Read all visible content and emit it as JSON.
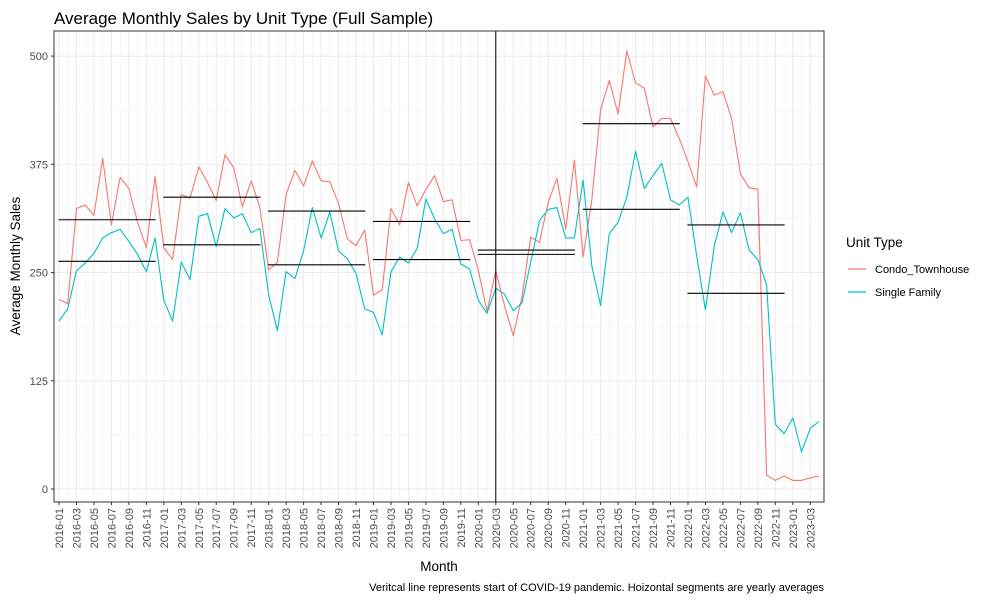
{
  "chart_data": {
    "type": "line",
    "title": "Average Monthly Sales by Unit Type (Full Sample)",
    "xlabel": "Month",
    "ylabel": "Average Monthly Sales",
    "caption": "Veritcal line represents start of COVID-19 pandemic. Hoizontal segments are yearly averages",
    "ylim": [
      -15,
      529
    ],
    "y_ticks": [
      0,
      125,
      250,
      375,
      500
    ],
    "grid": true,
    "legend": {
      "title": "Unit Type",
      "placement": "right"
    },
    "x": [
      "2016-01",
      "2016-02",
      "2016-03",
      "2016-04",
      "2016-05",
      "2016-06",
      "2016-07",
      "2016-08",
      "2016-09",
      "2016-10",
      "2016-11",
      "2016-12",
      "2017-01",
      "2017-02",
      "2017-03",
      "2017-04",
      "2017-05",
      "2017-06",
      "2017-07",
      "2017-08",
      "2017-09",
      "2017-10",
      "2017-11",
      "2017-12",
      "2018-01",
      "2018-02",
      "2018-03",
      "2018-04",
      "2018-05",
      "2018-06",
      "2018-07",
      "2018-08",
      "2018-09",
      "2018-10",
      "2018-11",
      "2018-12",
      "2019-01",
      "2019-02",
      "2019-03",
      "2019-04",
      "2019-05",
      "2019-06",
      "2019-07",
      "2019-08",
      "2019-09",
      "2019-10",
      "2019-11",
      "2019-12",
      "2020-01",
      "2020-02",
      "2020-03",
      "2020-04",
      "2020-05",
      "2020-06",
      "2020-07",
      "2020-08",
      "2020-09",
      "2020-10",
      "2020-11",
      "2020-12",
      "2021-01",
      "2021-02",
      "2021-03",
      "2021-04",
      "2021-05",
      "2021-06",
      "2021-07",
      "2021-08",
      "2021-09",
      "2021-10",
      "2021-11",
      "2021-12",
      "2022-01",
      "2022-02",
      "2022-03",
      "2022-04",
      "2022-05",
      "2022-06",
      "2022-07",
      "2022-08",
      "2022-09",
      "2022-10",
      "2022-11",
      "2022-12",
      "2023-01",
      "2023-02",
      "2023-03",
      "2023-04"
    ],
    "x_tick_labels": [
      "2016-01",
      "2016-03",
      "2016-05",
      "2016-07",
      "2016-09",
      "2016-11",
      "2017-01",
      "2017-03",
      "2017-05",
      "2017-07",
      "2017-09",
      "2017-11",
      "2018-01",
      "2018-03",
      "2018-05",
      "2018-07",
      "2018-09",
      "2018-11",
      "2019-01",
      "2019-03",
      "2019-05",
      "2019-07",
      "2019-09",
      "2019-11",
      "2020-01",
      "2020-03",
      "2020-05",
      "2020-07",
      "2020-09",
      "2020-11",
      "2021-01",
      "2021-03",
      "2021-05",
      "2021-07",
      "2021-09",
      "2021-11",
      "2022-01",
      "2022-03",
      "2022-05",
      "2022-07",
      "2022-09",
      "2022-11",
      "2023-01",
      "2023-03"
    ],
    "vline": "2020-03",
    "series": [
      {
        "name": "Condo_Townhouse",
        "color": "#F8766D",
        "values": [
          219,
          214,
          324,
          328,
          316,
          382,
          305,
          360,
          347,
          308,
          279,
          361,
          279,
          265,
          340,
          336,
          372,
          354,
          333,
          386,
          371,
          326,
          356,
          325,
          253,
          262,
          340,
          368,
          350,
          379,
          356,
          355,
          330,
          289,
          281,
          299,
          224,
          230,
          324,
          305,
          354,
          327,
          346,
          362,
          332,
          334,
          287,
          288,
          253,
          205,
          252,
          212,
          177,
          222,
          291,
          285,
          331,
          359,
          300,
          380,
          268,
          335,
          438,
          472,
          433,
          506,
          469,
          463,
          418,
          428,
          428,
          405,
          378,
          349,
          477,
          455,
          459,
          428,
          364,
          348,
          346,
          16,
          10,
          15,
          10,
          10,
          13,
          15
        ]
      },
      {
        "name": "Single Family",
        "color": "#00BFC4",
        "values": [
          194,
          208,
          252,
          261,
          272,
          290,
          296,
          300,
          286,
          271,
          251,
          290,
          218,
          194,
          262,
          242,
          315,
          318,
          280,
          324,
          313,
          318,
          296,
          301,
          224,
          183,
          251,
          243,
          275,
          325,
          290,
          320,
          275,
          266,
          249,
          208,
          204,
          178,
          251,
          268,
          261,
          278,
          335,
          312,
          295,
          300,
          260,
          254,
          218,
          203,
          232,
          225,
          206,
          215,
          262,
          310,
          323,
          325,
          290,
          290,
          357,
          257,
          212,
          295,
          308,
          337,
          390,
          347,
          362,
          376,
          334,
          328,
          337,
          269,
          207,
          280,
          320,
          296,
          319,
          276,
          265,
          236,
          75,
          64,
          82,
          43,
          70,
          78
        ]
      }
    ],
    "yearly_averages": [
      {
        "series": "Single Family",
        "year": "2016",
        "value": 263
      },
      {
        "series": "Condo_Townhouse",
        "year": "2016",
        "value": 311
      },
      {
        "series": "Single Family",
        "year": "2017",
        "value": 282
      },
      {
        "series": "Condo_Townhouse",
        "year": "2017",
        "value": 337
      },
      {
        "series": "Single Family",
        "year": "2018",
        "value": 259
      },
      {
        "series": "Condo_Townhouse",
        "year": "2018",
        "value": 321
      },
      {
        "series": "Single Family",
        "year": "2019",
        "value": 265
      },
      {
        "series": "Condo_Townhouse",
        "year": "2019",
        "value": 309
      },
      {
        "series": "Single Family",
        "year": "2020",
        "value": 271
      },
      {
        "series": "Condo_Townhouse",
        "year": "2020",
        "value": 276
      },
      {
        "series": "Single Family",
        "year": "2021",
        "value": 323
      },
      {
        "series": "Condo_Townhouse",
        "year": "2021",
        "value": 422
      },
      {
        "series": "Single Family",
        "year": "2022",
        "value": 226
      },
      {
        "series": "Condo_Townhouse",
        "year": "2022",
        "value": 305
      }
    ]
  }
}
